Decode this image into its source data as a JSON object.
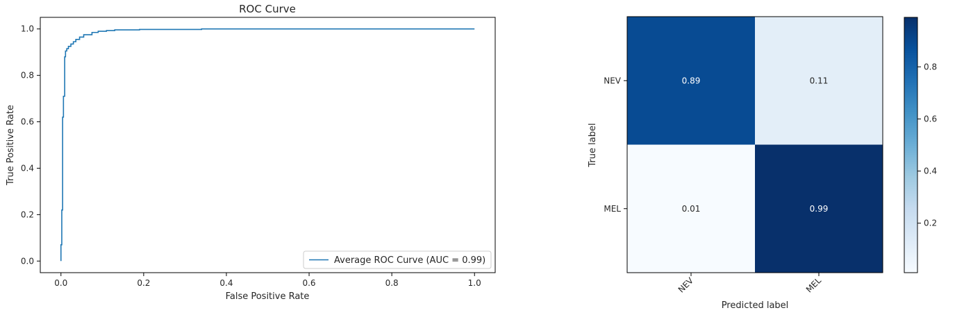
{
  "chart_data": [
    {
      "type": "line",
      "title": "ROC Curve",
      "xlabel": "False Positive Rate",
      "ylabel": "True Positive Rate",
      "xlim": [
        -0.05,
        1.05
      ],
      "ylim": [
        -0.05,
        1.05
      ],
      "xticks": [
        "0.0",
        "0.2",
        "0.4",
        "0.6",
        "0.8",
        "1.0"
      ],
      "yticks": [
        "0.0",
        "0.2",
        "0.4",
        "0.6",
        "0.8",
        "1.0"
      ],
      "legend_position": "lower-right",
      "grid": false,
      "series": [
        {
          "name": "Average ROC Curve (AUC = 0.99)",
          "color": "#1f77b4",
          "x": [
            0.0,
            0.0,
            0.002,
            0.002,
            0.004,
            0.004,
            0.006,
            0.006,
            0.009,
            0.009,
            0.011,
            0.011,
            0.014,
            0.014,
            0.018,
            0.018,
            0.024,
            0.024,
            0.03,
            0.03,
            0.036,
            0.036,
            0.045,
            0.045,
            0.055,
            0.055,
            0.075,
            0.075,
            0.09,
            0.09,
            0.11,
            0.11,
            0.13,
            0.13,
            0.19,
            0.19,
            0.34,
            0.34,
            1.0
          ],
          "y": [
            0.0,
            0.07,
            0.07,
            0.22,
            0.22,
            0.62,
            0.62,
            0.71,
            0.71,
            0.88,
            0.88,
            0.905,
            0.905,
            0.915,
            0.915,
            0.925,
            0.925,
            0.935,
            0.935,
            0.945,
            0.945,
            0.955,
            0.955,
            0.965,
            0.965,
            0.975,
            0.975,
            0.985,
            0.985,
            0.99,
            0.99,
            0.993,
            0.993,
            0.996,
            0.996,
            0.998,
            0.998,
            1.0,
            1.0
          ]
        }
      ]
    },
    {
      "type": "heatmap",
      "xlabel": "Predicted label",
      "ylabel": "True label",
      "x_categories": [
        "NEV",
        "MEL"
      ],
      "y_categories": [
        "NEV",
        "MEL"
      ],
      "values": [
        [
          0.89,
          0.11
        ],
        [
          0.01,
          0.99
        ]
      ],
      "value_labels": [
        [
          "0.89",
          "0.11"
        ],
        [
          "0.01",
          "0.99"
        ]
      ],
      "colormap": "Blues",
      "colorbar_range": [
        0.01,
        0.99
      ],
      "colorbar_ticks": [
        "0.2",
        "0.4",
        "0.6",
        "0.8"
      ]
    }
  ]
}
